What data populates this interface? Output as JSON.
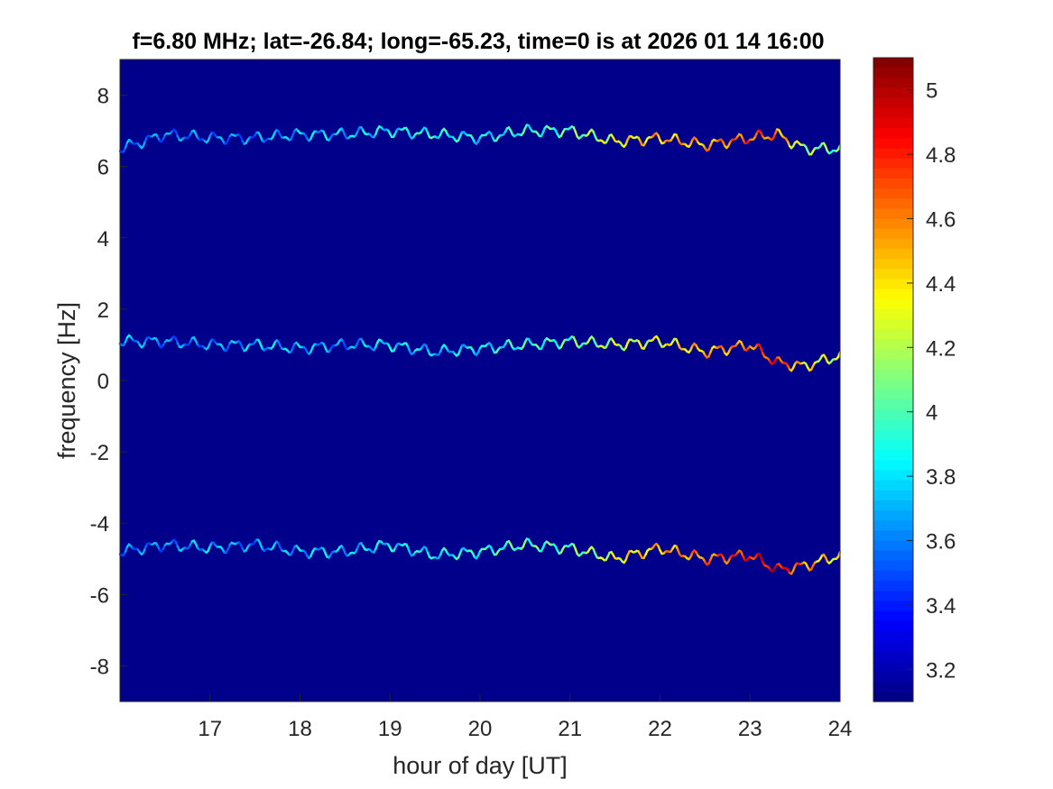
{
  "chart_data": {
    "type": "heatmap",
    "title": "f=6.80 MHz;  lat=-26.84; long=-65.23, time=0 is at 2026 01 14 16:00",
    "xlabel": "hour of day [UT]",
    "ylabel": "frequency [Hz]",
    "xlim": [
      16,
      24
    ],
    "ylim": [
      -9,
      9
    ],
    "xticks": [
      17,
      18,
      19,
      20,
      21,
      22,
      23,
      24
    ],
    "yticks": [
      -8,
      -6,
      -4,
      -2,
      0,
      2,
      4,
      6,
      8
    ],
    "colormap": "jet",
    "clim": [
      3.1,
      5.1
    ],
    "colorbar_ticks": [
      3.2,
      3.4,
      3.6,
      3.8,
      4,
      4.2,
      4.4,
      4.6,
      4.8,
      5
    ],
    "background_value": 3.12,
    "grid": false,
    "ridges": [
      {
        "name": "upper",
        "hours": [
          16.0,
          16.5,
          17.0,
          17.5,
          18.0,
          18.5,
          19.0,
          19.5,
          20.0,
          20.5,
          21.0,
          21.5,
          22.0,
          22.5,
          23.0,
          23.3,
          23.6,
          24.0
        ],
        "freq_hz": [
          6.5,
          6.9,
          6.8,
          6.8,
          6.9,
          6.9,
          7.0,
          6.9,
          6.8,
          7.0,
          7.0,
          6.7,
          6.8,
          6.6,
          6.8,
          6.9,
          6.5,
          6.5
        ],
        "intensity": [
          3.6,
          3.6,
          3.6,
          3.6,
          3.7,
          3.7,
          3.8,
          3.9,
          3.8,
          3.9,
          4.0,
          4.3,
          4.5,
          4.5,
          4.7,
          4.6,
          4.2,
          4.0
        ]
      },
      {
        "name": "middle",
        "hours": [
          16.0,
          16.5,
          17.0,
          17.5,
          18.0,
          18.5,
          19.0,
          19.5,
          20.0,
          20.5,
          21.0,
          21.5,
          22.0,
          22.5,
          23.0,
          23.3,
          23.6,
          24.0
        ],
        "freq_hz": [
          1.1,
          1.1,
          1.0,
          1.0,
          0.9,
          1.0,
          1.0,
          0.8,
          0.9,
          1.0,
          1.1,
          1.0,
          1.1,
          0.8,
          1.0,
          0.5,
          0.4,
          0.7
        ],
        "intensity": [
          3.7,
          3.6,
          3.6,
          3.7,
          3.7,
          3.6,
          3.8,
          3.7,
          3.8,
          3.9,
          4.0,
          4.2,
          4.3,
          4.5,
          4.6,
          4.8,
          4.4,
          4.2
        ]
      },
      {
        "name": "lower",
        "hours": [
          16.0,
          16.5,
          17.0,
          17.5,
          18.0,
          18.5,
          19.0,
          19.5,
          20.0,
          20.5,
          21.0,
          21.5,
          22.0,
          22.5,
          23.0,
          23.3,
          23.6,
          24.0
        ],
        "freq_hz": [
          -4.8,
          -4.6,
          -4.7,
          -4.6,
          -4.8,
          -4.8,
          -4.6,
          -4.9,
          -4.8,
          -4.6,
          -4.7,
          -5.0,
          -4.7,
          -5.0,
          -4.9,
          -5.3,
          -5.2,
          -4.9
        ],
        "intensity": [
          3.6,
          3.6,
          3.7,
          3.6,
          3.7,
          3.7,
          3.8,
          3.8,
          3.9,
          4.0,
          4.0,
          4.3,
          4.5,
          4.6,
          4.8,
          4.9,
          4.6,
          4.3
        ]
      }
    ]
  }
}
